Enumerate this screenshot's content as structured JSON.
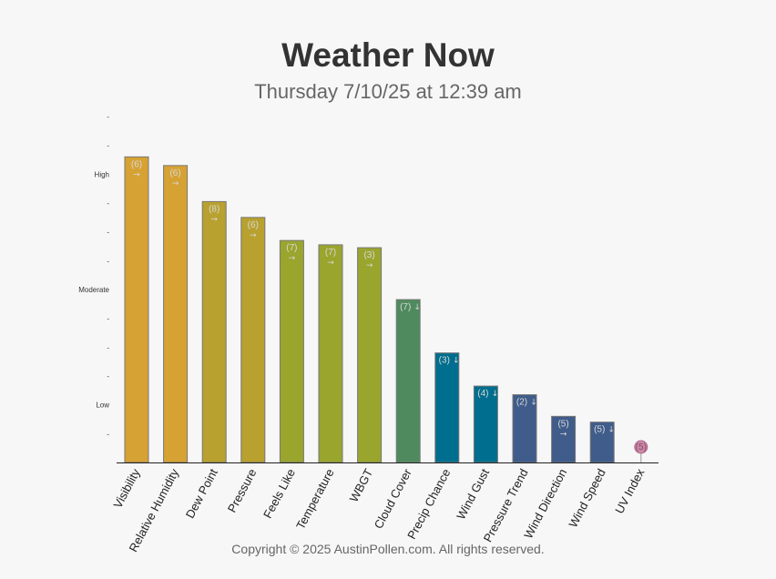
{
  "header": {
    "title": "Weather Now",
    "subtitle": "Thursday 7/10/25 at 12:39 am"
  },
  "footer": {
    "copyright": "Copyright © 2025 AustinPollen.com.  All rights reserved."
  },
  "chart_data": {
    "type": "bar",
    "title": "Weather Now",
    "subtitle": "Thursday 7/10/25 at 12:39 am",
    "xlabel": "",
    "ylabel": "",
    "ylim": [
      0,
      12
    ],
    "grid": false,
    "y_ticks": [
      {
        "value": 1,
        "label": "-"
      },
      {
        "value": 2,
        "label": "Low"
      },
      {
        "value": 3,
        "label": "-"
      },
      {
        "value": 4,
        "label": "-"
      },
      {
        "value": 5,
        "label": "-"
      },
      {
        "value": 6,
        "label": "Moderate"
      },
      {
        "value": 7,
        "label": "-"
      },
      {
        "value": 8,
        "label": "-"
      },
      {
        "value": 9,
        "label": "-"
      },
      {
        "value": 10,
        "label": "High"
      },
      {
        "value": 11,
        "label": "-"
      },
      {
        "value": 12,
        "label": "-"
      }
    ],
    "categories": [
      "Visibility",
      "Relative Humidity",
      "Dew Point",
      "Pressure",
      "Feels Like",
      "Temperature",
      "WBGT",
      "Cloud Cover",
      "Precip Chance",
      "Wind Gust",
      "Pressure Trend",
      "Wind Direction",
      "Wind Speed",
      "UV Index"
    ],
    "values": [
      10.6,
      10.3,
      9.05,
      8.5,
      7.7,
      7.55,
      7.45,
      5.65,
      3.8,
      2.65,
      2.35,
      1.6,
      1.4,
      0.0
    ],
    "bar_labels": [
      "(6)",
      "(6)",
      "(8)",
      "(6)",
      "(7)",
      "(7)",
      "(3)",
      "(7)",
      "(3)",
      "(4)",
      "(2)",
      "(5)",
      "(5)",
      "(5)"
    ],
    "trend_arrows": [
      "→",
      "→",
      "→",
      "→",
      "→",
      "→",
      "→",
      "↓",
      "↓",
      "↓",
      "↓",
      "→",
      "↓",
      ""
    ],
    "colors": [
      "#d6a233",
      "#d6a233",
      "#b8a12f",
      "#b8a12f",
      "#9aa52e",
      "#9aa52e",
      "#9aa52e",
      "#4f8a5e",
      "#006e8e",
      "#006e8e",
      "#3f5c8a",
      "#3f5c8a",
      "#3f5c8a",
      "#c98aa8"
    ]
  }
}
